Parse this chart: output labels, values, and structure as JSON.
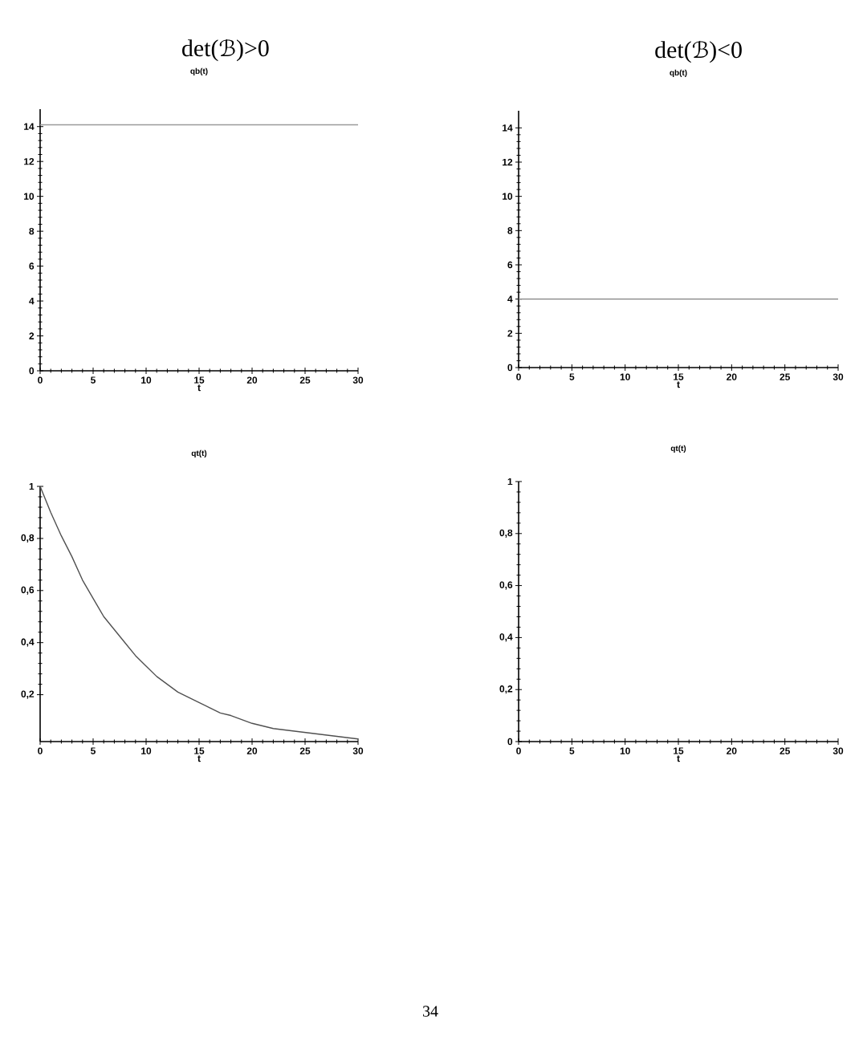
{
  "chart_data": [
    {
      "type": "line",
      "title": "det(ℬ)>0",
      "subtitle": "qb(t)",
      "xlabel": "t",
      "x": [
        0,
        30
      ],
      "values": [
        14.1,
        14.1
      ],
      "color": "#9a9a9a",
      "xlim": [
        0,
        30
      ],
      "ylim": [
        0,
        15
      ],
      "xticks": [
        0,
        5,
        10,
        15,
        20,
        25,
        30
      ],
      "yticks": [
        0,
        2,
        4,
        6,
        8,
        10,
        12,
        14
      ]
    },
    {
      "type": "line",
      "title": "det(ℬ)<0",
      "subtitle": "qb(t)",
      "xlabel": "t",
      "x": [
        0,
        30
      ],
      "values": [
        4,
        4
      ],
      "color": "#808080",
      "xlim": [
        0,
        30
      ],
      "ylim": [
        0,
        15
      ],
      "xticks": [
        0,
        5,
        10,
        15,
        20,
        25,
        30
      ],
      "yticks": [
        0,
        2,
        4,
        6,
        8,
        10,
        12,
        14
      ]
    },
    {
      "type": "line",
      "title": "qt(t)",
      "xlabel": "t",
      "x": [
        0,
        1,
        2,
        3,
        4,
        5,
        6,
        7,
        8,
        9,
        10,
        11,
        12,
        13,
        14,
        15,
        16,
        17,
        18,
        20,
        22,
        24,
        26,
        28,
        30
      ],
      "values": [
        1.0,
        0.9,
        0.81,
        0.73,
        0.64,
        0.57,
        0.5,
        0.45,
        0.4,
        0.35,
        0.31,
        0.27,
        0.24,
        0.21,
        0.19,
        0.17,
        0.15,
        0.13,
        0.12,
        0.09,
        0.07,
        0.06,
        0.05,
        0.04,
        0.03
      ],
      "color": "#505050",
      "xlim": [
        0,
        30
      ],
      "ylim": [
        0.02,
        1
      ],
      "xticks": [
        0,
        5,
        10,
        15,
        20,
        25,
        30
      ],
      "yticks": [
        {
          "value": 0.2,
          "label": "0,2"
        },
        {
          "value": 0.4,
          "label": "0,4"
        },
        {
          "value": 0.6,
          "label": "0,6"
        },
        {
          "value": 0.8,
          "label": "0,8"
        },
        1
      ]
    },
    {
      "type": "line",
      "title": "qt(t)",
      "xlabel": "t",
      "xlim": [
        0,
        30
      ],
      "ylim": [
        0,
        1
      ],
      "xticks": [
        0,
        5,
        10,
        15,
        20,
        25,
        30
      ],
      "yticks": [
        0,
        {
          "value": 0.2,
          "label": "0,2"
        },
        {
          "value": 0.4,
          "label": "0,4"
        },
        {
          "value": 0.6,
          "label": "0,6"
        },
        {
          "value": 0.8,
          "label": "0,8"
        },
        1
      ],
      "annotations": [
        "34"
      ]
    }
  ]
}
